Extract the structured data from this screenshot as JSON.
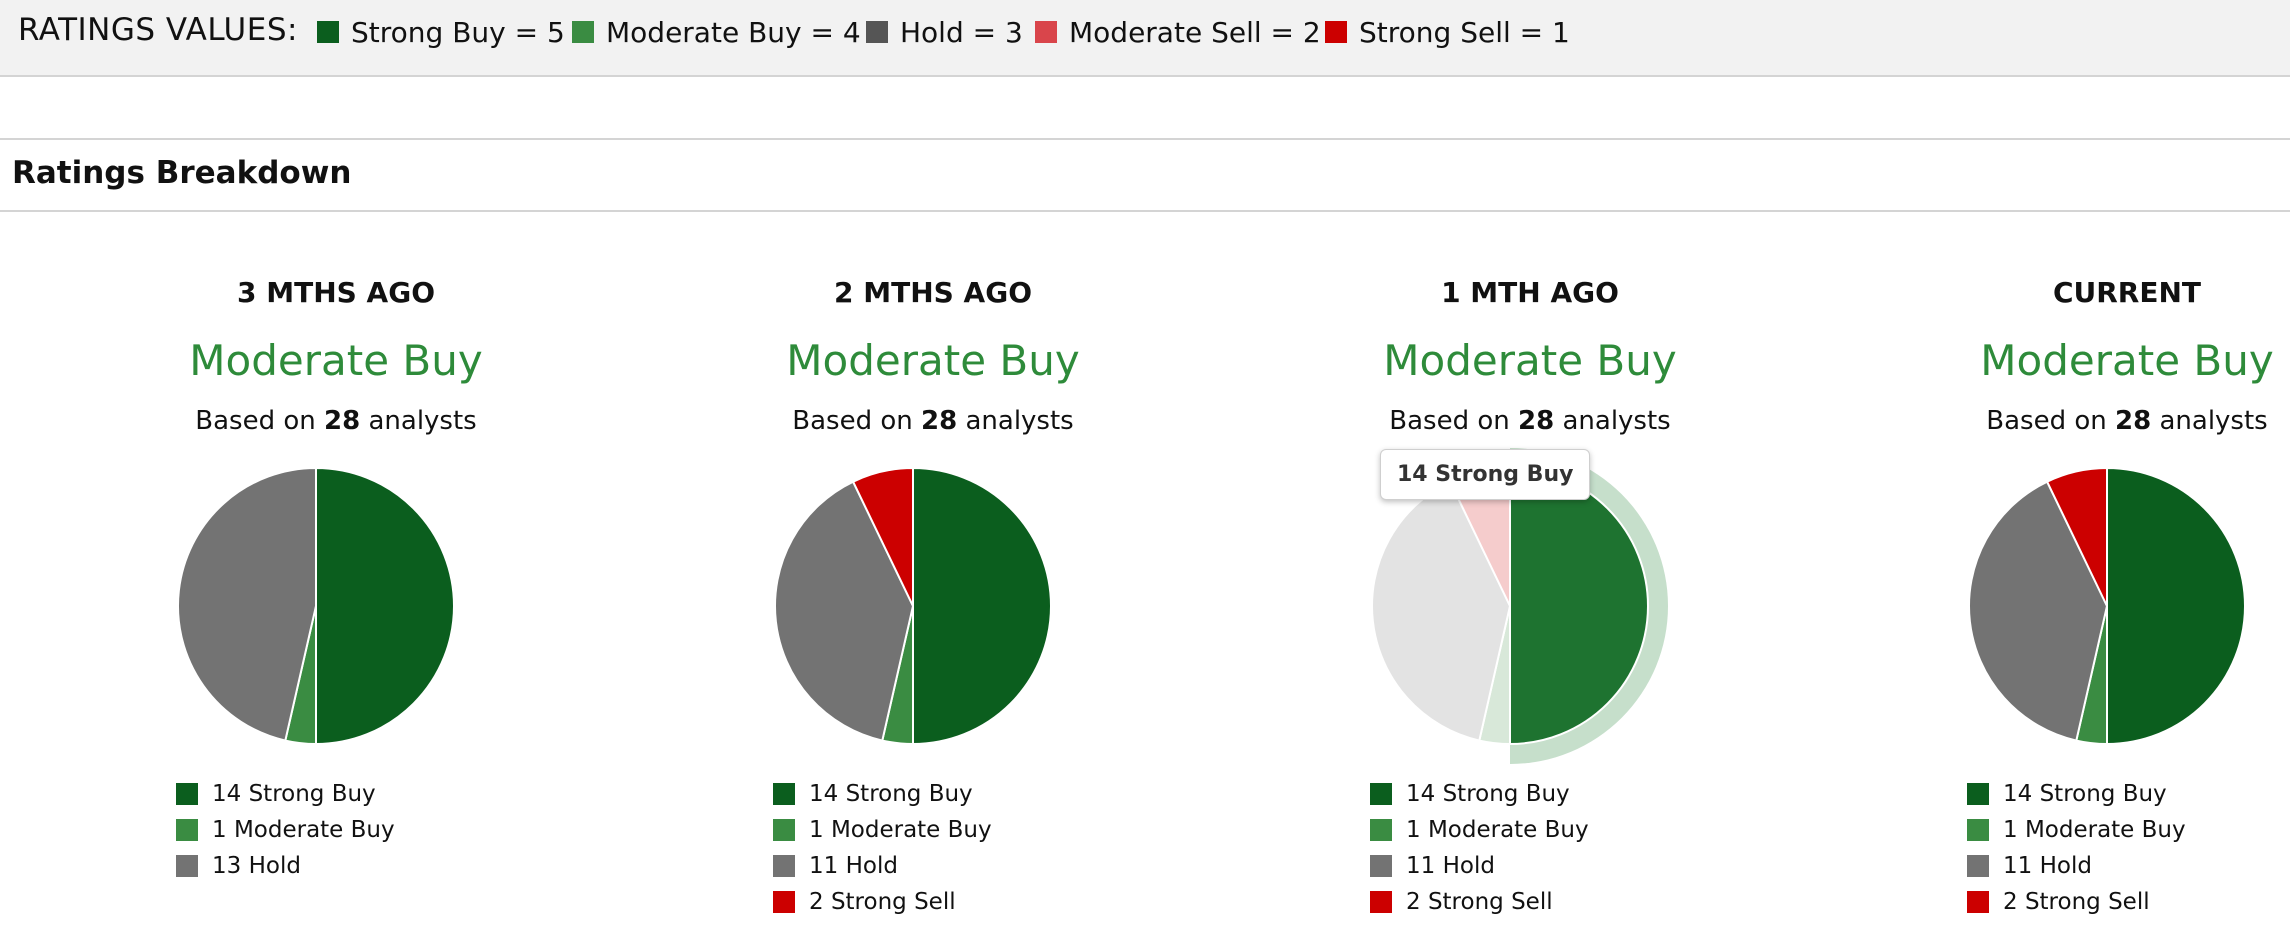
{
  "top_legend": {
    "title": "RATINGS VALUES:",
    "items": [
      {
        "label": "Strong Buy = 5",
        "color": "#0b5e1e"
      },
      {
        "label": "Moderate Buy = 4",
        "color": "#3a8c42"
      },
      {
        "label": "Hold = 3",
        "color": "#555555"
      },
      {
        "label": "Moderate Sell = 2",
        "color": "#d9454b"
      },
      {
        "label": "Strong Sell = 1",
        "color": "#cc0000"
      }
    ]
  },
  "section_title": "Ratings Breakdown",
  "based_prefix": "Based on",
  "based_suffix": "analysts",
  "chart_data": [
    {
      "type": "pie",
      "title": "3 MTHS AGO",
      "consensus": "Moderate Buy",
      "analysts": 28,
      "slices": [
        {
          "label": "Strong Buy",
          "value": 14,
          "color": "#0b5e1e"
        },
        {
          "label": "Moderate Buy",
          "value": 1,
          "color": "#3a8c42"
        },
        {
          "label": "Hold",
          "value": 13,
          "color": "#737373"
        }
      ],
      "legend": [
        "14 Strong Buy",
        "1 Moderate Buy",
        "13 Hold"
      ]
    },
    {
      "type": "pie",
      "title": "2 MTHS AGO",
      "consensus": "Moderate Buy",
      "analysts": 28,
      "slices": [
        {
          "label": "Strong Buy",
          "value": 14,
          "color": "#0b5e1e"
        },
        {
          "label": "Moderate Buy",
          "value": 1,
          "color": "#3a8c42"
        },
        {
          "label": "Hold",
          "value": 11,
          "color": "#737373"
        },
        {
          "label": "Strong Sell",
          "value": 2,
          "color": "#cc0000"
        }
      ],
      "legend": [
        "14 Strong Buy",
        "1 Moderate Buy",
        "11 Hold",
        "2 Strong Sell"
      ]
    },
    {
      "type": "pie",
      "title": "1 MTH AGO",
      "consensus": "Moderate Buy",
      "analysts": 28,
      "highlighted": "Strong Buy",
      "tooltip": "14 Strong Buy",
      "slices": [
        {
          "label": "Strong Buy",
          "value": 14,
          "color": "#0b5e1e"
        },
        {
          "label": "Moderate Buy",
          "value": 1,
          "color": "#3a8c42"
        },
        {
          "label": "Hold",
          "value": 11,
          "color": "#737373"
        },
        {
          "label": "Strong Sell",
          "value": 2,
          "color": "#cc0000"
        }
      ],
      "legend": [
        "14 Strong Buy",
        "1 Moderate Buy",
        "11 Hold",
        "2 Strong Sell"
      ]
    },
    {
      "type": "pie",
      "title": "CURRENT",
      "consensus": "Moderate Buy",
      "analysts": 28,
      "slices": [
        {
          "label": "Strong Buy",
          "value": 14,
          "color": "#0b5e1e"
        },
        {
          "label": "Moderate Buy",
          "value": 1,
          "color": "#3a8c42"
        },
        {
          "label": "Hold",
          "value": 11,
          "color": "#737373"
        },
        {
          "label": "Strong Sell",
          "value": 2,
          "color": "#cc0000"
        }
      ],
      "legend": [
        "14 Strong Buy",
        "1 Moderate Buy",
        "11 Hold",
        "2 Strong Sell"
      ]
    }
  ]
}
